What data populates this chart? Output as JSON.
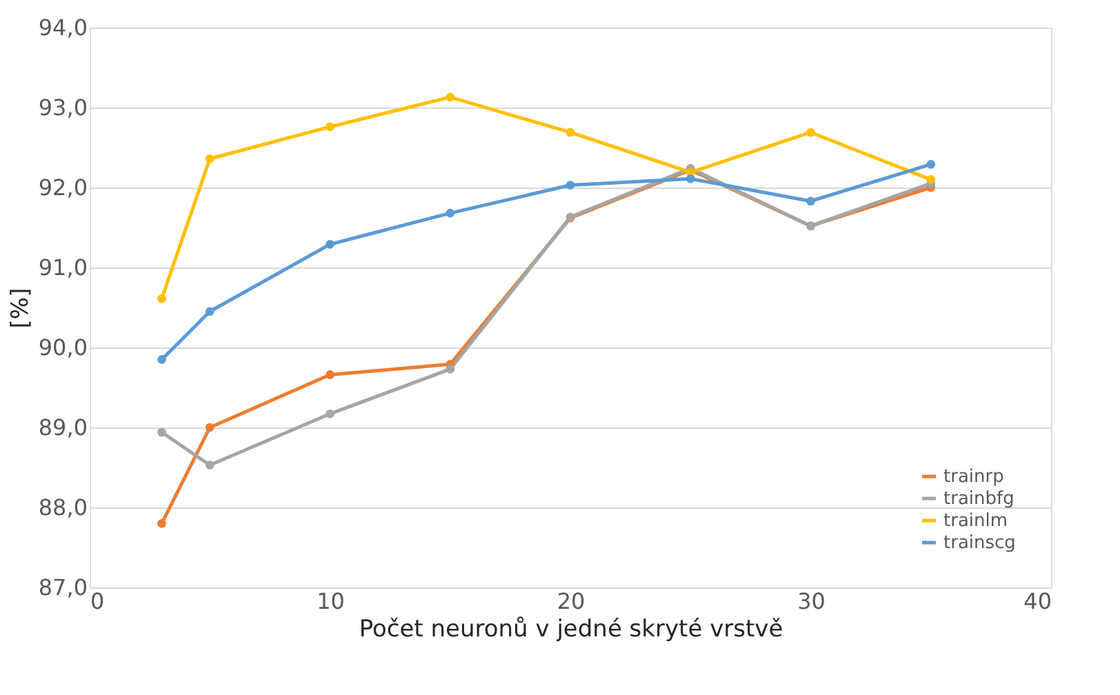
{
  "chart_data": {
    "type": "line",
    "xlabel": "Počet neuronů v jedné skryté vrstvě",
    "ylabel": "[%]",
    "x": [
      3,
      5,
      10,
      15,
      20,
      25,
      30,
      35
    ],
    "series": [
      {
        "name": "trainrp",
        "color": "#ed7d31",
        "values": [
          87.8,
          89.0,
          89.66,
          89.79,
          91.62,
          92.22,
          91.52,
          92.0
        ]
      },
      {
        "name": "trainbfg",
        "color": "#a5a5a5",
        "values": [
          88.94,
          88.53,
          89.17,
          89.73,
          91.63,
          92.24,
          91.52,
          92.05
        ]
      },
      {
        "name": "trainlm",
        "color": "#ffc000",
        "values": [
          90.61,
          92.36,
          92.76,
          93.13,
          92.69,
          92.19,
          92.69,
          92.1
        ]
      },
      {
        "name": "trainscg",
        "color": "#5b9bd5",
        "values": [
          89.85,
          90.45,
          91.29,
          91.68,
          92.03,
          92.11,
          91.83,
          92.29
        ]
      }
    ],
    "xlim": [
      0,
      40
    ],
    "xticks": [
      0,
      10,
      20,
      30,
      40
    ],
    "ylim": [
      87,
      94
    ],
    "yticks": [
      {
        "value": 87,
        "label": "87,0"
      },
      {
        "value": 88,
        "label": "88,0"
      },
      {
        "value": 89,
        "label": "89,0"
      },
      {
        "value": 90,
        "label": "90,0"
      },
      {
        "value": 91,
        "label": "91,0"
      },
      {
        "value": 92,
        "label": "92,0"
      },
      {
        "value": 93,
        "label": "93,0"
      },
      {
        "value": 94,
        "label": "94,0"
      }
    ],
    "grid": "y",
    "legend": "bottom right",
    "marker": "circle",
    "line_style": "solid"
  }
}
